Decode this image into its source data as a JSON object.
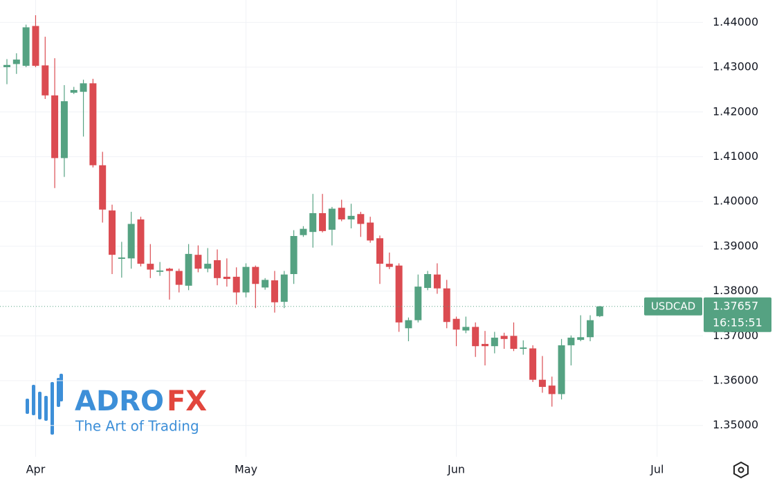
{
  "chart_data": {
    "type": "candlestick",
    "symbol": "USDCAD",
    "last_price": 1.37657,
    "countdown": "16:15:51",
    "up_color": "#55a282",
    "down_color": "#db4b51",
    "categories": [
      null,
      null,
      null,
      "Apr",
      null,
      null,
      null,
      null,
      null,
      null,
      null,
      null,
      null,
      null,
      null,
      null,
      null,
      null,
      null,
      null,
      null,
      null,
      null,
      null,
      null,
      "May",
      null,
      null,
      null,
      null,
      null,
      null,
      null,
      null,
      null,
      null,
      null,
      null,
      null,
      null,
      null,
      null,
      null,
      null,
      null,
      null,
      null,
      "Jun",
      null,
      null,
      null,
      null,
      null,
      null,
      null,
      null,
      null,
      null,
      null,
      null,
      null,
      null,
      null,
      null,
      null,
      null,
      null,
      null,
      "Jul"
    ],
    "open": [
      1.43,
      1.4307,
      1.4303,
      1.4392,
      1.4304,
      1.4237,
      1.4097,
      1.4243,
      1.4245,
      1.4264,
      1.4081,
      1.398,
      1.3872,
      1.3873,
      1.396,
      1.3861,
      1.3843,
      1.385,
      1.3845,
      1.3812,
      1.3881,
      1.385,
      1.3869,
      1.3832,
      1.3832,
      1.3797,
      1.3854,
      1.3808,
      1.3824,
      1.3776,
      1.3838,
      1.3925,
      1.3932,
      1.3974,
      1.3937,
      1.3986,
      1.396,
      1.3972,
      1.3953,
      1.3918,
      1.3861,
      1.3857,
      1.3717,
      1.3735,
      1.3807,
      1.3837,
      1.3806,
      1.3738,
      1.3712,
      1.372,
      1.3682,
      1.3677,
      1.37,
      1.37,
      1.3671,
      1.3672,
      1.3602,
      1.3589,
      1.357,
      1.3679,
      1.3691,
      1.3697,
      1.3744,
      null,
      null,
      null,
      null,
      null,
      null
    ],
    "high": [
      1.4318,
      1.4331,
      1.4395,
      1.4416,
      1.4368,
      1.432,
      1.426,
      1.4256,
      1.4272,
      1.4274,
      1.4111,
      1.3993,
      1.391,
      1.3977,
      1.3966,
      1.3905,
      1.3865,
      1.3852,
      1.385,
      1.3905,
      1.3902,
      1.3896,
      1.3893,
      1.3873,
      1.3853,
      1.3862,
      1.3857,
      1.3829,
      1.3845,
      1.3845,
      1.3936,
      1.3945,
      1.4017,
      1.4017,
      1.3988,
      1.4004,
      1.3995,
      1.3977,
      1.3966,
      1.3924,
      1.3886,
      1.3862,
      1.3741,
      1.3837,
      1.3845,
      1.3862,
      1.3825,
      1.3743,
      1.3743,
      1.373,
      1.3711,
      1.3709,
      1.3707,
      1.373,
      1.369,
      1.3679,
      1.3655,
      1.3609,
      1.3693,
      1.3701,
      1.3746,
      1.3746,
      1.3767,
      null,
      null,
      null,
      null,
      null,
      null
    ],
    "low": [
      1.4262,
      1.4285,
      1.43,
      1.43,
      1.4229,
      1.403,
      1.4055,
      1.424,
      1.4145,
      1.4076,
      1.3953,
      1.3838,
      1.383,
      1.385,
      1.3855,
      1.3829,
      1.3834,
      1.3781,
      1.3797,
      1.3802,
      1.3842,
      1.3842,
      1.3813,
      1.381,
      1.377,
      1.3786,
      1.3762,
      1.3803,
      1.3752,
      1.3762,
      1.3816,
      1.3921,
      1.3897,
      1.3931,
      1.3902,
      1.3956,
      1.394,
      1.3921,
      1.3908,
      1.3816,
      1.3849,
      1.3709,
      1.3688,
      1.373,
      1.3802,
      1.3794,
      1.3717,
      1.3677,
      1.3706,
      1.3653,
      1.3634,
      1.3661,
      1.3671,
      1.3666,
      1.3658,
      1.3597,
      1.3573,
      1.3542,
      1.3558,
      1.3634,
      1.3688,
      1.3688,
      1.3742,
      null,
      null,
      null,
      null,
      null,
      null
    ],
    "close": [
      1.4305,
      1.4317,
      1.4389,
      1.4303,
      1.4237,
      1.4097,
      1.4224,
      1.4249,
      1.4264,
      1.4081,
      1.3982,
      1.3881,
      1.3875,
      1.395,
      1.3861,
      1.3848,
      1.3846,
      1.3845,
      1.3814,
      1.3883,
      1.385,
      1.3861,
      1.3829,
      1.3827,
      1.3797,
      1.3854,
      1.3816,
      1.3825,
      1.3775,
      1.3837,
      1.3923,
      1.3939,
      1.3974,
      1.3934,
      1.3984,
      1.396,
      1.3968,
      1.395,
      1.3913,
      1.3861,
      1.3854,
      1.373,
      1.3735,
      1.381,
      1.3838,
      1.3806,
      1.3731,
      1.3714,
      1.372,
      1.3677,
      1.3677,
      1.3696,
      1.3693,
      1.3671,
      1.3674,
      1.3602,
      1.3586,
      1.357,
      1.3679,
      1.3696,
      1.3697,
      1.3735,
      1.37657,
      null,
      null,
      null,
      null,
      null,
      null
    ],
    "ylim": [
      1.343,
      1.445
    ],
    "yticks": [
      {
        "value": 1.35,
        "label": "1.35000"
      },
      {
        "value": 1.36,
        "label": "1.36000"
      },
      {
        "value": 1.37,
        "label": "1.37000"
      },
      {
        "value": 1.38,
        "label": "1.38000"
      },
      {
        "value": 1.39,
        "label": "1.39000"
      },
      {
        "value": 1.4,
        "label": "1.40000"
      },
      {
        "value": 1.41,
        "label": "1.41000"
      },
      {
        "value": 1.42,
        "label": "1.42000"
      },
      {
        "value": 1.43,
        "label": "1.43000"
      },
      {
        "value": 1.44,
        "label": "1.44000"
      }
    ],
    "grid": true
  },
  "logo": {
    "name_left": "ADRO",
    "name_right": "FX",
    "tagline": "The Art of Trading"
  }
}
